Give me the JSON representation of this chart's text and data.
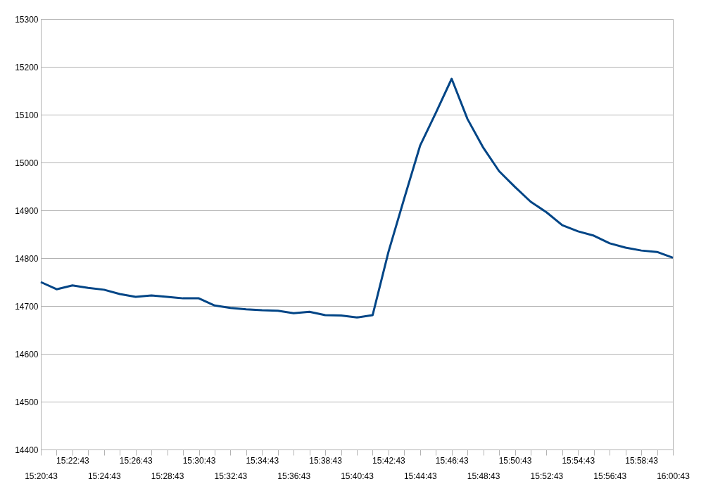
{
  "chart_data": {
    "type": "line",
    "categories": [
      "15:20:43",
      null,
      "15:22:43",
      null,
      "15:24:43",
      null,
      "15:26:43",
      null,
      "15:28:43",
      null,
      "15:30:43",
      null,
      "15:32:43",
      null,
      "15:34:43",
      null,
      "15:36:43",
      null,
      "15:38:43",
      null,
      "15:40:43",
      null,
      "15:42:43",
      null,
      "15:44:43",
      null,
      "15:46:43",
      null,
      "15:48:43",
      null,
      "15:50:43",
      null,
      "15:52:43",
      null,
      "15:54:43",
      null,
      "15:56:43",
      null,
      "15:58:43",
      null,
      "16:00:43"
    ],
    "series": [
      {
        "color": "#004586",
        "values": [
          14750,
          14735,
          14743,
          14738,
          14734,
          14725,
          14719,
          14722,
          14719,
          14716,
          14716,
          14701,
          14696,
          14693,
          14691,
          14690,
          14685,
          14688,
          14681,
          14680,
          14676,
          14681,
          14813,
          14925,
          15035,
          15104,
          15175,
          15091,
          15031,
          14982,
          14949,
          14918,
          14896,
          14869,
          14856,
          14847,
          14831,
          14822,
          14816,
          14813,
          14801
        ]
      }
    ],
    "ylim": [
      14400,
      15300
    ],
    "yticks": [
      14400,
      14500,
      14600,
      14700,
      14800,
      14900,
      15000,
      15100,
      15200,
      15300
    ],
    "grid": "y",
    "marker": "none"
  }
}
